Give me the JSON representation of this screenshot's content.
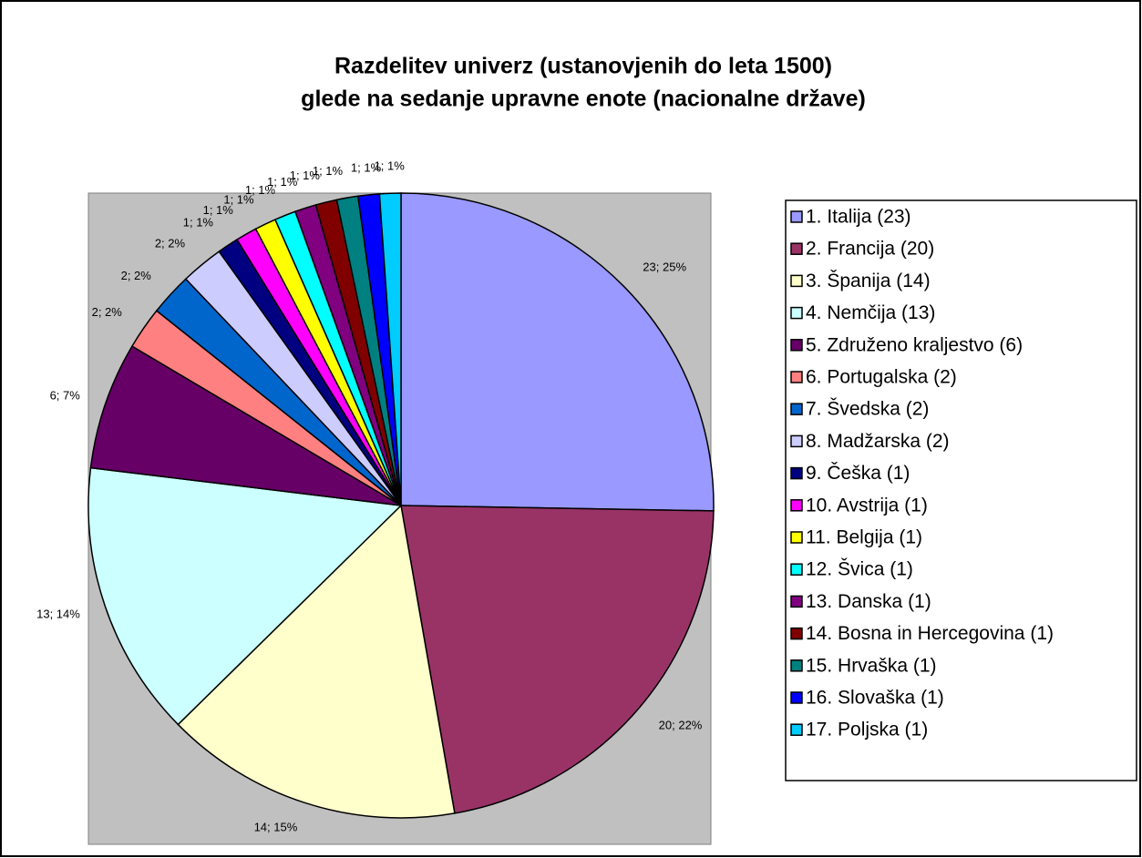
{
  "chart_data": {
    "type": "pie",
    "title": [
      "Razdelitev univerz (ustanovjenih do leta 1500)",
      "glede na sedanje upravne enote (nacionalne države)"
    ],
    "categories": [
      "1. Italija (23)",
      "2. Francija (20)",
      "3. Španija (14)",
      "4. Nemčija (13)",
      "5. Združeno kraljestvo (6)",
      "6. Portugalska (2)",
      "7. Švedska (2)",
      "8. Madžarska (2)",
      "9. Češka (1)",
      "10. Avstrija (1)",
      "11. Belgija (1)",
      "12. Švica (1)",
      "13. Danska (1)",
      "14. Bosna in Hercegovina (1)",
      "15. Hrvaška (1)",
      "16. Slovaška (1)",
      "17. Poljska (1)"
    ],
    "values": [
      23,
      20,
      14,
      13,
      6,
      2,
      2,
      2,
      1,
      1,
      1,
      1,
      1,
      1,
      1,
      1,
      1
    ],
    "value_labels": [
      "23; 25%",
      "20; 22%",
      "14; 15%",
      "13; 14%",
      "6; 7%",
      "2; 2%",
      "2; 2%",
      "2; 2%",
      "1; 1%",
      "1; 1%",
      "1; 1%",
      "1; 1%",
      "1; 1%",
      "1; 1%",
      "1; 1%",
      "1; 1%",
      "1; 1%"
    ],
    "colors": [
      "#9999ff",
      "#993366",
      "#ffffcc",
      "#ccffff",
      "#660066",
      "#ff8080",
      "#0066cc",
      "#ccccff",
      "#000080",
      "#ff00ff",
      "#ffff00",
      "#00ffff",
      "#800080",
      "#800000",
      "#008080",
      "#0000ff",
      "#00ccff"
    ],
    "legend": "right"
  }
}
